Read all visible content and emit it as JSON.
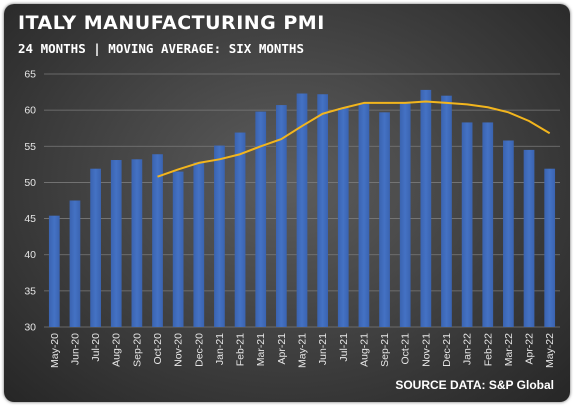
{
  "title": "ITALY MANUFACTURING PMI",
  "subtitle": "24 MONTHS | MOVING AVERAGE: SIX MONTHS",
  "source": "SOURCE DATA: S&P Global",
  "colors": {
    "bar": "#4472c4",
    "line": "#f2b51d",
    "grid": "#7a7a7a",
    "text": "#e6e6e6"
  },
  "chart_data": {
    "type": "bar",
    "categories": [
      "May-20",
      "Jun-20",
      "Jul-20",
      "Aug-20",
      "Sep-20",
      "Oct-20",
      "Nov-20",
      "Dec-20",
      "Jan-21",
      "Feb-21",
      "Mar-21",
      "Apr-21",
      "May-21",
      "Jun-21",
      "Jul-21",
      "Aug-21",
      "Sep-21",
      "Oct-21",
      "Nov-21",
      "Dec-21",
      "Jan-22",
      "Feb-22",
      "Mar-22",
      "Apr-22",
      "May-22"
    ],
    "series": [
      {
        "type": "bar",
        "values": [
          45.4,
          47.5,
          51.9,
          53.1,
          53.2,
          53.9,
          51.5,
          52.8,
          55.1,
          56.9,
          59.8,
          60.7,
          62.3,
          62.2,
          60.3,
          60.9,
          59.7,
          61.1,
          62.8,
          62.0,
          58.3,
          58.3,
          55.8,
          54.5,
          51.9
        ]
      },
      {
        "type": "line",
        "values": [
          null,
          null,
          null,
          null,
          null,
          50.8,
          51.8,
          52.7,
          53.2,
          53.9,
          55.0,
          56.0,
          57.8,
          59.5,
          60.3,
          61.0,
          61.0,
          61.0,
          61.2,
          61.0,
          60.8,
          60.4,
          59.7,
          58.5,
          56.8
        ]
      }
    ],
    "ylim": [
      30,
      65
    ],
    "yticks": [
      30,
      35,
      40,
      45,
      50,
      55,
      60,
      65
    ],
    "grid": true
  }
}
